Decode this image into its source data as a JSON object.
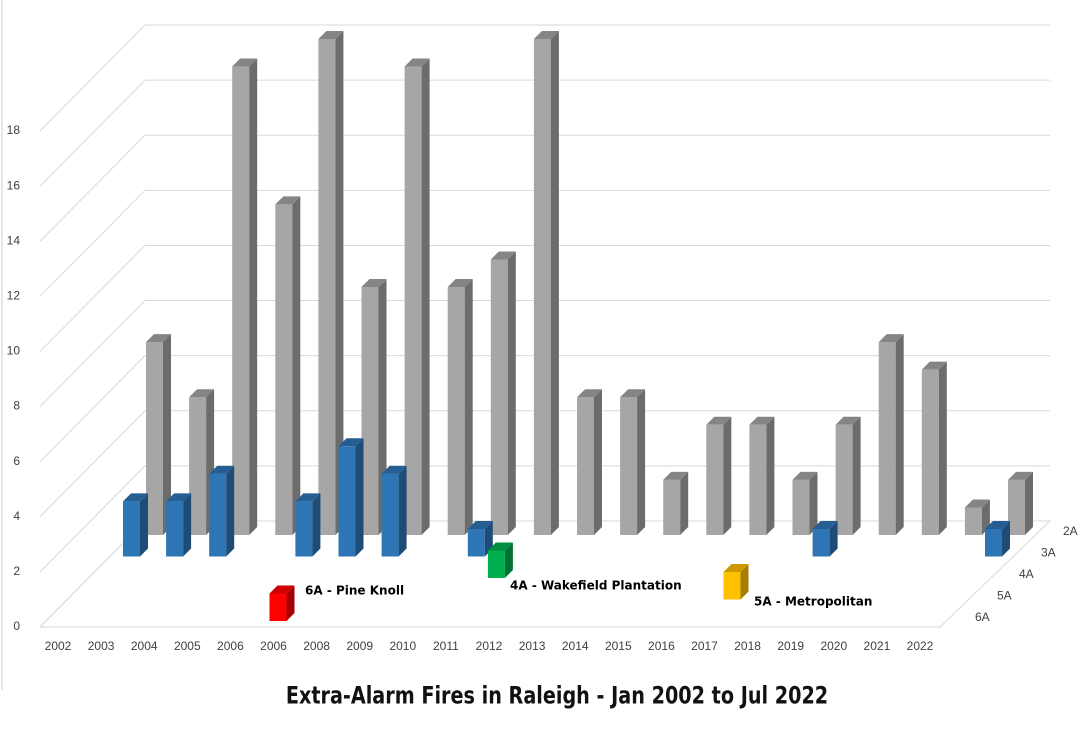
{
  "chart_data": {
    "type": "bar3d",
    "title": "Extra-Alarm Fires in Raleigh - Jan 2002 to Jul 2022",
    "categories": [
      "2002",
      "2003",
      "2004",
      "2005",
      "2006",
      "2006",
      "2008",
      "2009",
      "2010",
      "2011",
      "2012",
      "2013",
      "2014",
      "2015",
      "2016",
      "2017",
      "2018",
      "2019",
      "2020",
      "2021",
      "2022"
    ],
    "series": [
      {
        "name": "2A",
        "color": "#a6a6a6",
        "values": [
          7,
          5,
          17,
          12,
          18,
          9,
          17,
          9,
          10,
          18,
          5,
          5,
          2,
          4,
          4,
          2,
          4,
          7,
          6,
          1,
          2
        ]
      },
      {
        "name": "3A",
        "color": "#2e75b6",
        "values": [
          2,
          2,
          3,
          null,
          2,
          4,
          3,
          null,
          1,
          null,
          null,
          null,
          null,
          null,
          null,
          null,
          1,
          null,
          null,
          null,
          1
        ]
      },
      {
        "name": "4A",
        "color": "#00b050",
        "values": [
          null,
          null,
          null,
          null,
          null,
          null,
          null,
          null,
          null,
          1,
          null,
          null,
          null,
          null,
          null,
          null,
          null,
          null,
          null,
          null,
          null
        ]
      },
      {
        "name": "5A",
        "color": "#ffc000",
        "values": [
          null,
          null,
          null,
          null,
          null,
          null,
          null,
          null,
          null,
          null,
          null,
          null,
          null,
          null,
          null,
          1,
          null,
          null,
          null,
          null,
          null
        ]
      },
      {
        "name": "6A",
        "color": "#ff0000",
        "values": [
          null,
          null,
          null,
          null,
          null,
          1,
          null,
          null,
          null,
          null,
          null,
          null,
          null,
          null,
          null,
          null,
          null,
          null,
          null,
          null,
          null
        ]
      }
    ],
    "annotations": [
      "6A - Pine Knoll",
      "4A - Wakefield Plantation",
      "5A - Metropolitan"
    ],
    "ylim": [
      0,
      18
    ],
    "yticks": [
      0,
      2,
      4,
      6,
      8,
      10,
      12,
      14,
      16,
      18
    ],
    "grid": true
  }
}
